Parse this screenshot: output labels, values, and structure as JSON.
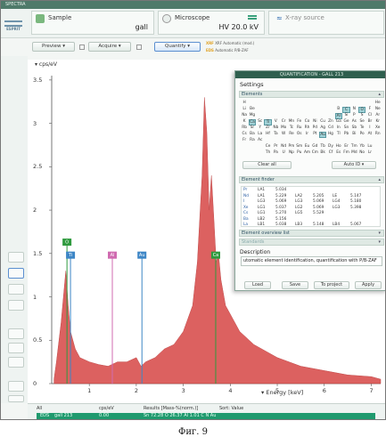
{
  "window": {
    "title": "SPECTRA"
  },
  "logo": {
    "text": "ESPRIT"
  },
  "sample": {
    "label": "Sample",
    "value": "gall"
  },
  "microscope": {
    "label": "Microscope",
    "hv": "HV 20.0 kV"
  },
  "xray": {
    "label": "X-ray source"
  },
  "toolbar": {
    "preview": "Preview",
    "acquire": "Acquire",
    "quantify": "Quantify",
    "opt1_key": "XRF",
    "opt1": "XRF Automatic (mod.)",
    "opt2_key": "EDS",
    "opt2": "Automatic P/B-ZAF"
  },
  "chart": {
    "ylabel": "cps/eV",
    "xlabel": "Energy [keV]",
    "yticks": [
      "3.5",
      "3",
      "2.5",
      "2",
      "1.5",
      "1",
      "0.5",
      "0"
    ],
    "xticks": [
      "1",
      "2",
      "3",
      "4",
      "5",
      "6",
      "7"
    ]
  },
  "chart_data": {
    "type": "area",
    "xlabel": "Energy [keV]",
    "ylabel": "cps/eV",
    "xlim": [
      0.2,
      7.2
    ],
    "ylim": [
      0,
      3.55
    ],
    "x": [
      0.25,
      0.3,
      0.4,
      0.5,
      0.55,
      0.6,
      0.7,
      0.8,
      1.0,
      1.2,
      1.4,
      1.6,
      1.8,
      2.0,
      2.1,
      2.2,
      2.4,
      2.6,
      2.8,
      3.0,
      3.2,
      3.3,
      3.4,
      3.45,
      3.5,
      3.55,
      3.6,
      3.65,
      3.7,
      3.75,
      3.8,
      3.9,
      4.0,
      4.2,
      4.5,
      5.0,
      5.5,
      6.0,
      6.5,
      7.0,
      7.2
    ],
    "y": [
      0.05,
      0.25,
      0.7,
      1.3,
      0.9,
      0.6,
      0.4,
      0.3,
      0.25,
      0.22,
      0.2,
      0.25,
      0.25,
      0.3,
      0.2,
      0.25,
      0.3,
      0.4,
      0.45,
      0.6,
      0.9,
      1.4,
      2.4,
      3.3,
      2.9,
      2.0,
      2.4,
      1.9,
      1.4,
      1.5,
      1.2,
      0.9,
      0.8,
      0.6,
      0.45,
      0.3,
      0.2,
      0.15,
      0.1,
      0.08,
      0.05
    ],
    "markers": [
      {
        "label": "O",
        "x": 0.525,
        "color": "#2f9a3e"
      },
      {
        "label": "Ti",
        "x": 0.6,
        "color": "#3d86c6"
      },
      {
        "label": "Al",
        "x": 1.49,
        "color": "#d06bb0"
      },
      {
        "label": "Au",
        "x": 2.12,
        "color": "#3d86c6"
      },
      {
        "label": "Ca",
        "x": 3.69,
        "color": "#2f9a3e"
      }
    ]
  },
  "quant": {
    "title": "QUANTIFICATION - GALL 213",
    "settings": "Settings",
    "elements_header": "Elements",
    "clear_all": "Clear all",
    "auto_id": "Auto ID",
    "finder_header": "Element finder",
    "overview_header": "Element overview list",
    "standards_header": "Standards",
    "description_label": "Description",
    "description": "utomatic element identification, quantification with P/B-ZAF",
    "load": "Load",
    "save": "Save",
    "to_project": "To project",
    "apply": "Apply",
    "periodic": [
      [
        "H",
        "",
        "",
        "",
        "",
        "",
        "",
        "",
        "",
        "",
        "",
        "",
        "",
        "",
        "",
        "",
        "",
        "He"
      ],
      [
        "Li",
        "Be",
        "",
        "",
        "",
        "",
        "",
        "",
        "",
        "",
        "",
        "",
        "B",
        "C",
        "N",
        "O",
        "F",
        "Ne"
      ],
      [
        "Na",
        "Mg",
        "",
        "",
        "",
        "",
        "",
        "",
        "",
        "",
        "",
        "",
        "Al",
        "Si",
        "P",
        "S",
        "Cl",
        "Ar"
      ],
      [
        "K",
        "Ca",
        "Sc",
        "Ti",
        "V",
        "Cr",
        "Mn",
        "Fe",
        "Co",
        "Ni",
        "Cu",
        "Zn",
        "Ga",
        "Ge",
        "As",
        "Se",
        "Br",
        "Kr"
      ],
      [
        "Rb",
        "Sr",
        "Y",
        "Zr",
        "Nb",
        "Mo",
        "Tc",
        "Ru",
        "Rh",
        "Pd",
        "Ag",
        "Cd",
        "In",
        "Sn",
        "Sb",
        "Te",
        "I",
        "Xe"
      ],
      [
        "Cs",
        "Ba",
        "La",
        "Hf",
        "Ta",
        "W",
        "Re",
        "Os",
        "Ir",
        "Pt",
        "Au",
        "Hg",
        "Tl",
        "Pb",
        "Bi",
        "Po",
        "At",
        "Rn"
      ],
      [
        "Fr",
        "Ra",
        "Ac",
        "",
        "",
        "",
        "",
        "",
        "",
        "",
        "",
        "",
        "",
        "",
        "",
        "",
        "",
        ""
      ],
      [
        "",
        "",
        "",
        "Ce",
        "Pr",
        "Nd",
        "Pm",
        "Sm",
        "Eu",
        "Gd",
        "Tb",
        "Dy",
        "Ho",
        "Er",
        "Tm",
        "Yb",
        "Lu",
        ""
      ],
      [
        "",
        "",
        "",
        "Th",
        "Pa",
        "U",
        "Np",
        "Pu",
        "Am",
        "Cm",
        "Bk",
        "Cf",
        "Es",
        "Fm",
        "Md",
        "No",
        "Lr",
        ""
      ]
    ],
    "finder_rows": [
      [
        "Pr",
        "LA1",
        "5.034",
        "",
        "",
        "",
        ""
      ],
      [
        "Nd",
        "LA1",
        "5.229",
        "LA2",
        "5.205",
        "LE",
        "5.147"
      ],
      [
        "I",
        "LG3",
        "5.069",
        "LG3",
        "5.069",
        "LG4",
        "5.180"
      ],
      [
        "Xe",
        "LG1",
        "5.037",
        "LG2",
        "5.069",
        "LG3",
        "5.398"
      ],
      [
        "Cs",
        "LG1",
        "5.270",
        "LG5",
        "5.529",
        "",
        ""
      ],
      [
        "Ba",
        "LB2",
        "5.156",
        "",
        "",
        "",
        ""
      ],
      [
        "La",
        "LB1",
        "5.038",
        "LB3",
        "5.148",
        "LB4",
        "5.067"
      ]
    ]
  },
  "status": {
    "all": "All",
    "cps": "cps/eV",
    "results": "Results [Mass-%(norm.)]",
    "sort": "Sort: Value",
    "eds": "EDS",
    "sample": "gall 213",
    "count": "0.00",
    "stats": "Sn 72.28  O 26.37  Al 1.01  C  N  Au"
  },
  "caption": "Фиг. 9"
}
